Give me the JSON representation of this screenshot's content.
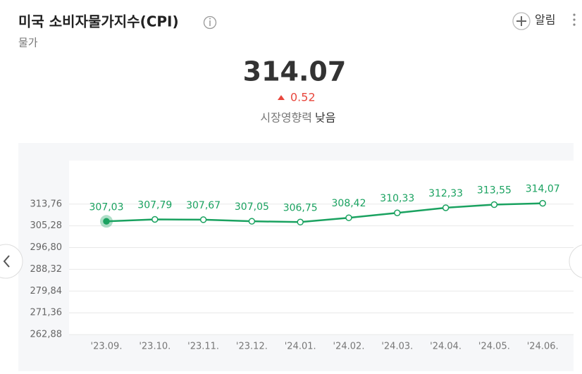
{
  "header": {
    "title": "미국 소비자물가지수(CPI)",
    "subtitle": "물가",
    "alert": "알림"
  },
  "summary": {
    "value": "314.07",
    "change": "0.52",
    "impact_label": "시장영향력",
    "impact": "낮음"
  },
  "chart_data": {
    "type": "line",
    "categories": [
      "'23.09.",
      "'23.10.",
      "'23.11.",
      "'23.12.",
      "'24.01.",
      "'24.02.",
      "'24.03.",
      "'24.04.",
      "'24.05.",
      "'24.06."
    ],
    "series": [
      {
        "name": "CPI",
        "color": "#1aa260",
        "values": [
          307.03,
          307.79,
          307.67,
          307.05,
          306.75,
          308.42,
          310.33,
          312.33,
          313.55,
          314.07
        ],
        "value_labels": [
          "307,03",
          "307,79",
          "307,67",
          "307,05",
          "306,75",
          "308,42",
          "310,33",
          "312,33",
          "313,55",
          "314,07"
        ]
      }
    ],
    "ylim": [
      262.88,
      330.72
    ],
    "yticks": [
      {
        "value": 262.88,
        "label": "262,88"
      },
      {
        "value": 271.36,
        "label": "271,36"
      },
      {
        "value": 279.84,
        "label": "279,84"
      },
      {
        "value": 288.32,
        "label": "288,32"
      },
      {
        "value": 296.8,
        "label": "296,80"
      },
      {
        "value": 305.28,
        "label": "305,28"
      },
      {
        "value": 313.76,
        "label": "313,76"
      }
    ],
    "grid": true
  }
}
